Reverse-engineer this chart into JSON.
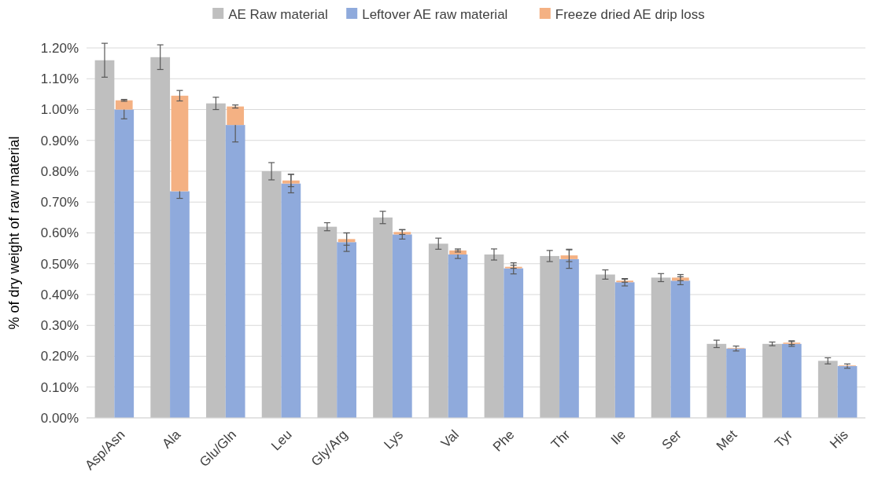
{
  "chart_data": {
    "type": "bar",
    "ylabel": "% of dry weight of raw material",
    "legend": "top",
    "grid": "y",
    "categories": [
      "Asp/Asn",
      "Ala",
      "Glu/Gln",
      "Leu",
      "Gly/Arg",
      "Lys",
      "Val",
      "Phe",
      "Thr",
      "Ile",
      "Ser",
      "Met",
      "Tyr",
      "His"
    ],
    "ylim": [
      0,
      1.2
    ],
    "yticks": [
      {
        "value": 0,
        "label": "0.00%"
      },
      {
        "value": 0.1,
        "label": "0.10%"
      },
      {
        "value": 0.2,
        "label": "0.20%"
      },
      {
        "value": 0.3,
        "label": "0.30%"
      },
      {
        "value": 0.4,
        "label": "0.40%"
      },
      {
        "value": 0.5,
        "label": "0.50%"
      },
      {
        "value": 0.6,
        "label": "0.60%"
      },
      {
        "value": 0.7,
        "label": "0.70%"
      },
      {
        "value": 0.8,
        "label": "0.80%"
      },
      {
        "value": 0.9,
        "label": "0.90%"
      },
      {
        "value": 1,
        "label": "1.00%"
      },
      {
        "value": 1.1,
        "label": "1.10%"
      },
      {
        "value": 1.2,
        "label": "1.20%"
      }
    ],
    "series": [
      {
        "name": "AE Raw material",
        "color": "#bfbfbf",
        "values": [
          1.16,
          1.17,
          1.02,
          0.8,
          0.62,
          0.65,
          0.565,
          0.53,
          0.525,
          0.465,
          0.455,
          0.24,
          0.24,
          0.185
        ],
        "errors": [
          0.055,
          0.04,
          0.02,
          0.028,
          0.013,
          0.02,
          0.018,
          0.018,
          0.018,
          0.015,
          0.013,
          0.012,
          0.006,
          0.01
        ]
      },
      {
        "name": "Leftover AE raw material",
        "color": "#8faadc",
        "values": [
          1.0,
          0.735,
          0.95,
          0.76,
          0.57,
          0.595,
          0.53,
          0.485,
          0.515,
          0.44,
          0.445,
          0.225,
          0.24,
          0.168
        ],
        "errors": [
          0.03,
          0.023,
          0.055,
          0.03,
          0.03,
          0.015,
          0.013,
          0.018,
          0.03,
          0.012,
          0.013,
          0.008,
          0.008,
          0.007
        ]
      },
      {
        "name": "Freeze dried AE drip loss",
        "color": "#f4b183",
        "base": [
          1.0,
          0.735,
          0.95,
          0.76,
          0.57,
          0.595,
          0.53,
          0.485,
          0.515,
          0.44,
          0.445,
          0.225,
          0.24,
          0.168
        ],
        "values": [
          0.03,
          0.31,
          0.06,
          0.01,
          0.01,
          0.008,
          0.013,
          0.005,
          0.012,
          0.005,
          0.01,
          0.002,
          0.004,
          0.002
        ],
        "errors": [
          0.003,
          0.017,
          0.005,
          0.02,
          0.02,
          0.008,
          0.005,
          0.005,
          0.02,
          0.005,
          0.01,
          null,
          0.006,
          null
        ]
      }
    ]
  }
}
